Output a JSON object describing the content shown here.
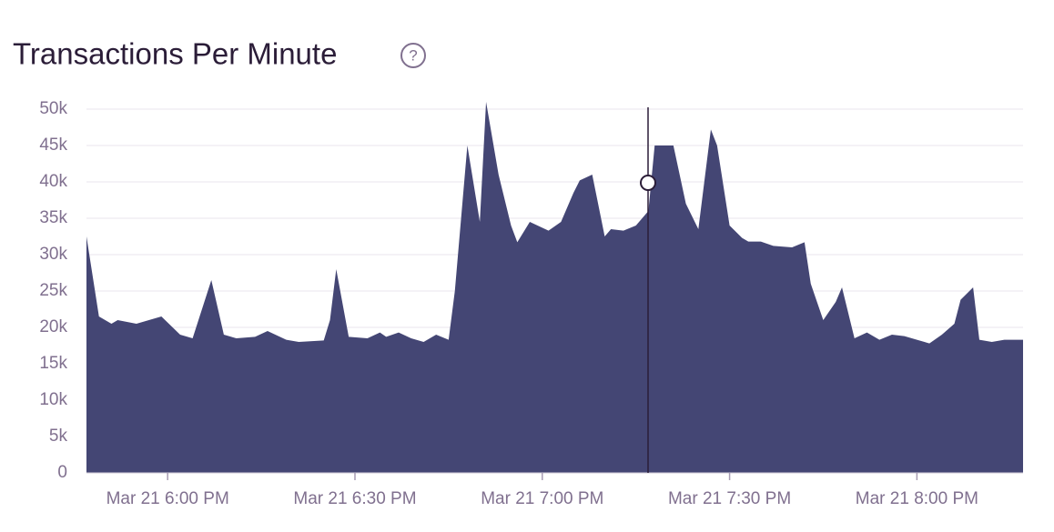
{
  "chart_data": {
    "type": "area",
    "title": "Transactions Per Minute",
    "color": "#444674",
    "grid": true,
    "x": [
      "17:47",
      "17:49",
      "17:51",
      "17:52",
      "17:55",
      "17:59",
      "18:02",
      "18:04",
      "18:07",
      "18:09",
      "18:11",
      "18:14",
      "18:16",
      "18:19",
      "18:21",
      "18:25",
      "18:26",
      "18:27",
      "18:29",
      "18:32",
      "18:34",
      "18:35",
      "18:37",
      "18:39",
      "18:41",
      "18:43",
      "18:45",
      "18:46",
      "18:48",
      "18:50",
      "18:51",
      "18:53",
      "18:55",
      "18:56",
      "18:58",
      "19:01",
      "19:03",
      "19:05",
      "19:06",
      "19:08",
      "19:10",
      "19:11",
      "19:13",
      "19:15",
      "19:17",
      "19:18",
      "19:21",
      "19:23",
      "19:25",
      "19:27",
      "19:28",
      "19:30",
      "19:32",
      "19:33",
      "19:35",
      "19:37",
      "19:40",
      "19:42",
      "19:43",
      "19:45",
      "19:47",
      "19:48",
      "19:50",
      "19:52",
      "19:54",
      "19:56",
      "19:58",
      "20:00",
      "20:02",
      "20:04",
      "20:06",
      "20:07",
      "20:09",
      "20:10",
      "20:12",
      "20:14",
      "20:17"
    ],
    "values": [
      32500,
      21500,
      20500,
      21000,
      20500,
      21500,
      19000,
      18500,
      26500,
      19000,
      18500,
      18700,
      19500,
      18300,
      18000,
      18200,
      21000,
      28000,
      18700,
      18500,
      19300,
      18700,
      19300,
      18500,
      18000,
      19000,
      18300,
      25000,
      45000,
      34500,
      51000,
      41000,
      34000,
      31700,
      34500,
      33300,
      34500,
      38500,
      40200,
      41000,
      32500,
      33500,
      33300,
      34000,
      36000,
      45000,
      45000,
      37000,
      33500,
      47200,
      45000,
      34000,
      32300,
      31800,
      31800,
      31200,
      31000,
      31700,
      26000,
      21000,
      23500,
      25500,
      18500,
      19300,
      18300,
      19000,
      18800,
      18300,
      17800,
      19000,
      20500,
      23800,
      25500,
      18300,
      18000,
      18300,
      18300
    ],
    "xlim": [
      "17:47",
      "20:17"
    ],
    "xticks": [
      {
        "value": "18:00",
        "label": "Mar 21 6:00 PM"
      },
      {
        "value": "18:30",
        "label": "Mar 21 6:30 PM"
      },
      {
        "value": "19:00",
        "label": "Mar 21 7:00 PM"
      },
      {
        "value": "19:30",
        "label": "Mar 21 7:30 PM"
      },
      {
        "value": "20:00",
        "label": "Mar 21 8:00 PM"
      }
    ],
    "ylim": [
      0,
      50000
    ],
    "yticks": [
      0,
      {
        "value": 5000,
        "label": "5k"
      },
      {
        "value": 10000,
        "label": "10k"
      },
      {
        "value": 15000,
        "label": "15k"
      },
      {
        "value": 20000,
        "label": "20k"
      },
      {
        "value": 25000,
        "label": "25k"
      },
      {
        "value": 30000,
        "label": "30k"
      },
      {
        "value": 35000,
        "label": "35k"
      },
      {
        "value": 40000,
        "label": "40k"
      },
      {
        "value": 45000,
        "label": "45k"
      },
      {
        "value": 50000,
        "label": "50k"
      }
    ]
  }
}
